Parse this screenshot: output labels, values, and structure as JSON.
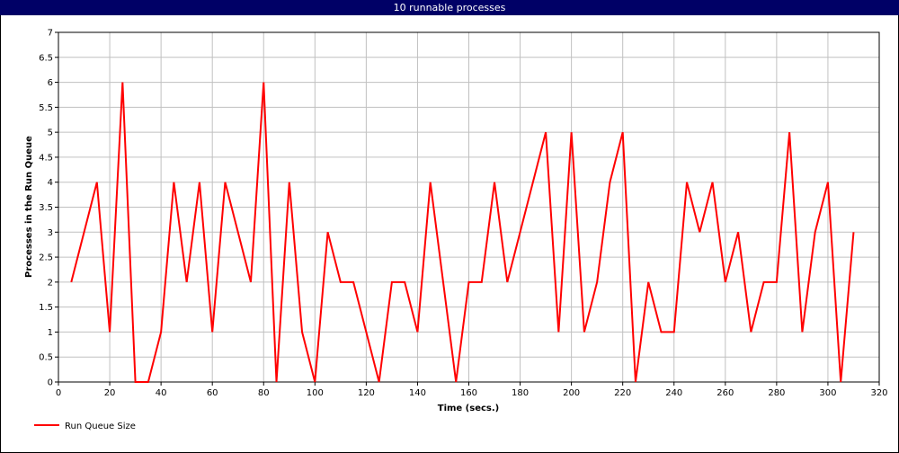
{
  "chart_data": {
    "type": "line",
    "title": "10 runnable processes",
    "x_label": "Time (secs.)",
    "y_label": "Processes in the Run Queue",
    "x": [
      5,
      15,
      20,
      25,
      30,
      35,
      40,
      45,
      50,
      55,
      60,
      65,
      75,
      80,
      85,
      90,
      95,
      100,
      105,
      110,
      115,
      125,
      130,
      135,
      140,
      145,
      155,
      160,
      165,
      170,
      175,
      190,
      195,
      200,
      205,
      210,
      215,
      220,
      225,
      230,
      235,
      240,
      245,
      250,
      255,
      260,
      265,
      270,
      275,
      280,
      285,
      290,
      295,
      300,
      305,
      310
    ],
    "series": [
      {
        "name": "Run Queue Size",
        "color": "#ff0000",
        "values": [
          2,
          4,
          1,
          6,
          0,
          0,
          1,
          4,
          2,
          4,
          1,
          4,
          2,
          6,
          0,
          4,
          1,
          0,
          3,
          2,
          2,
          0,
          2,
          2,
          1,
          4,
          0,
          2,
          2,
          4,
          2,
          5,
          1,
          5,
          1,
          2,
          4,
          5,
          0,
          2,
          1,
          1,
          4,
          3,
          4,
          2,
          3,
          1,
          2,
          2,
          5,
          1,
          3,
          4,
          0,
          3
        ]
      }
    ],
    "xlim": [
      0,
      320
    ],
    "xticks": [
      0,
      20,
      40,
      60,
      80,
      100,
      120,
      140,
      160,
      180,
      200,
      220,
      240,
      260,
      280,
      300,
      320
    ],
    "ylim": [
      0,
      7
    ],
    "yticks": [
      0,
      0.5,
      1,
      1.5,
      2,
      2.5,
      3,
      3.5,
      4,
      4.5,
      5,
      5.5,
      6,
      6.5,
      7
    ],
    "grid": true
  }
}
